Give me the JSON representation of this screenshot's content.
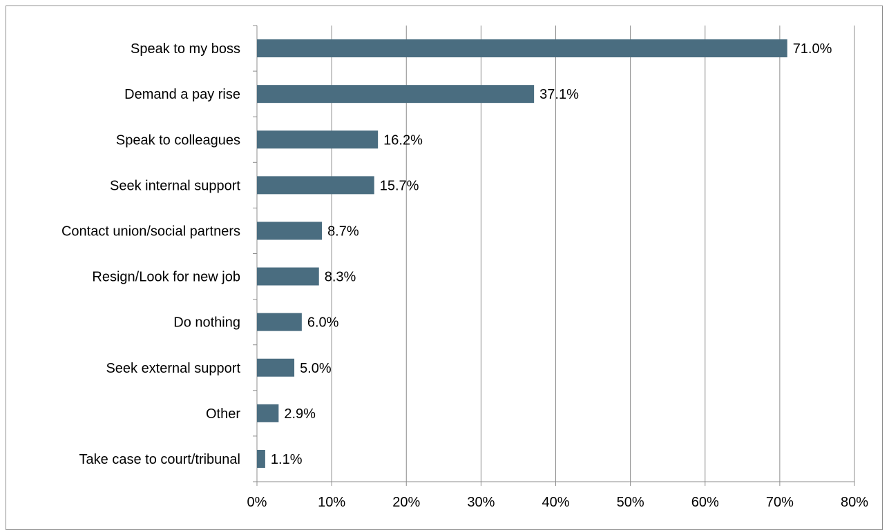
{
  "chart_data": {
    "type": "bar",
    "orientation": "horizontal",
    "categories": [
      "Speak to my boss",
      "Demand a pay rise",
      "Speak to colleagues",
      "Seek internal support",
      "Contact union/social partners",
      "Resign/Look for new job",
      "Do nothing",
      "Seek external support",
      "Other",
      "Take case to court/tribunal"
    ],
    "values": [
      71.0,
      37.1,
      16.2,
      15.7,
      8.7,
      8.3,
      6.0,
      5.0,
      2.9,
      1.1
    ],
    "value_labels": [
      "71.0%",
      "37.1%",
      "16.2%",
      "15.7%",
      "8.7%",
      "8.3%",
      "6.0%",
      "5.0%",
      "2.9%",
      "1.1%"
    ],
    "xlim": [
      0,
      80
    ],
    "xticks": [
      0,
      10,
      20,
      30,
      40,
      50,
      60,
      70,
      80
    ],
    "xtick_labels": [
      "0%",
      "10%",
      "20%",
      "30%",
      "40%",
      "50%",
      "60%",
      "70%",
      "80%"
    ],
    "title": "",
    "xlabel": "",
    "ylabel": "",
    "grid": "vertical",
    "legend": "none",
    "bar_color": "#4a6d80",
    "grid_color": "#8c8c8c",
    "axis_color": "#8c8c8c"
  }
}
